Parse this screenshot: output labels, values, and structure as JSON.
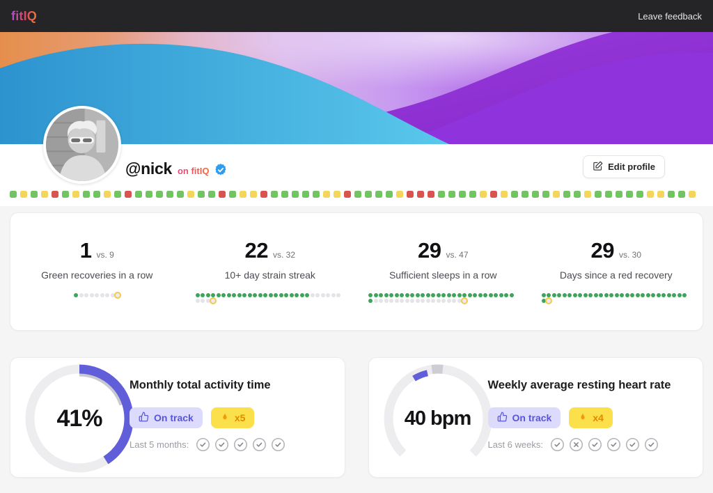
{
  "navbar": {
    "logo": "fitIQ",
    "feedback_label": "Leave feedback"
  },
  "profile": {
    "username": "@nick",
    "suffix": "on fitIQ",
    "edit_button_label": "Edit profile"
  },
  "heatmap": {
    "colors": {
      "g": "#72c361",
      "y": "#f4d65c",
      "r": "#d9534f"
    },
    "squares": [
      "g",
      "y",
      "g",
      "y",
      "r",
      "g",
      "y",
      "g",
      "g",
      "y",
      "g",
      "r",
      "g",
      "g",
      "g",
      "g",
      "g",
      "y",
      "g",
      "g",
      "r",
      "g",
      "y",
      "y",
      "r",
      "g",
      "g",
      "g",
      "g",
      "g",
      "y",
      "y",
      "r",
      "g",
      "g",
      "g",
      "g",
      "y",
      "r",
      "r",
      "r",
      "g",
      "g",
      "g",
      "g",
      "y",
      "r",
      "y",
      "g",
      "g",
      "g",
      "g",
      "y",
      "g",
      "g",
      "y",
      "g",
      "g",
      "g",
      "g",
      "g",
      "y",
      "y",
      "g",
      "g",
      "y"
    ]
  },
  "stats": [
    {
      "value": "1",
      "vs": "vs. 9",
      "label": "Green recoveries in a row",
      "dots": {
        "total": 9,
        "green": 1
      }
    },
    {
      "value": "22",
      "vs": "vs. 32",
      "label": "10+ day strain streak",
      "dots": {
        "total": 32,
        "green": 22
      }
    },
    {
      "value": "29",
      "vs": "vs. 47",
      "label": "Sufficient sleeps in a row",
      "dots": {
        "total": 47,
        "green": 29
      }
    },
    {
      "value": "29",
      "vs": "vs. 30",
      "label": "Days since a red recovery",
      "dots": {
        "total": 30,
        "green": 29
      }
    }
  ],
  "cards": [
    {
      "title": "Monthly total activity time",
      "gauge_value": "41%",
      "gauge_percent": 41,
      "secondary_percent": 20,
      "badges": {
        "on_track": "On track",
        "multiplier": "x5"
      },
      "history_label": "Last 5 months:",
      "history": [
        "check",
        "check",
        "check",
        "check",
        "check"
      ]
    },
    {
      "title": "Weekly average resting heart rate",
      "gauge_value": "40 bpm",
      "gauge_marks": {
        "track_percent": 75,
        "marker_percent": 3.5,
        "value_percent": 5
      },
      "badges": {
        "on_track": "On track",
        "multiplier": "x4"
      },
      "history_label": "Last 6 weeks:",
      "history": [
        "check",
        "x",
        "check",
        "check",
        "check",
        "check"
      ]
    }
  ],
  "colors": {
    "accent_purple": "#615ed9",
    "dot_green": "#3fa45b",
    "ring_yellow": "#f2c94c",
    "verified_blue": "#2e9df0",
    "badge_lavender": "#dcdbfc",
    "badge_yellow": "#fbe04b",
    "flame_orange": "#f29a0d"
  }
}
